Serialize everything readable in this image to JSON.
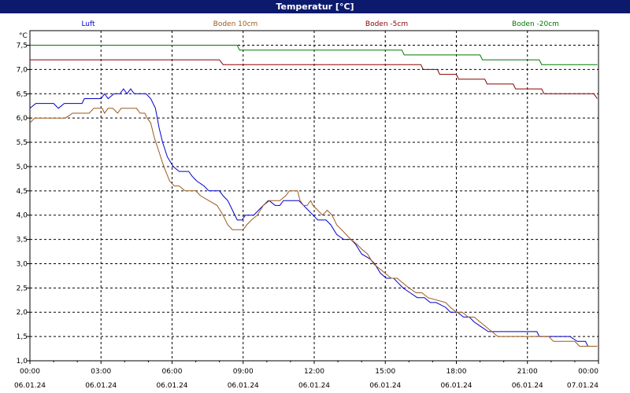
{
  "window": {
    "title": "Temperatur [°C]"
  },
  "chart_data": {
    "type": "line",
    "title": "Temperatur [°C]",
    "ylabel": "°C",
    "xlabel": "",
    "ylim": [
      1.0,
      7.8
    ],
    "xlim": [
      0,
      24
    ],
    "grid": true,
    "legend_position": "top",
    "y_ticks": [
      "7,5",
      "7,0",
      "6,5",
      "6,0",
      "5,5",
      "5,0",
      "4,5",
      "4,0",
      "3,5",
      "3,0",
      "2,5",
      "2,0",
      "1,5",
      "1,0"
    ],
    "x_ticks": [
      {
        "time": "00:00",
        "date": "06.01.24"
      },
      {
        "time": "03:00",
        "date": "06.01.24"
      },
      {
        "time": "06:00",
        "date": "06.01.24"
      },
      {
        "time": "09:00",
        "date": "06.01.24"
      },
      {
        "time": "12:00",
        "date": "06.01.24"
      },
      {
        "time": "15:00",
        "date": "06.01.24"
      },
      {
        "time": "18:00",
        "date": "06.01.24"
      },
      {
        "time": "21:00",
        "date": "06.01.24"
      },
      {
        "time": "00:00",
        "date": "07.01.24"
      }
    ],
    "series": [
      {
        "name": "Luft",
        "color": "#0000c8",
        "points": [
          [
            0,
            6.2
          ],
          [
            0.25,
            6.3
          ],
          [
            1.0,
            6.3
          ],
          [
            1.2,
            6.2
          ],
          [
            1.45,
            6.3
          ],
          [
            2.2,
            6.3
          ],
          [
            2.3,
            6.4
          ],
          [
            3.0,
            6.4
          ],
          [
            3.15,
            6.5
          ],
          [
            3.3,
            6.4
          ],
          [
            3.55,
            6.5
          ],
          [
            3.8,
            6.5
          ],
          [
            3.95,
            6.6
          ],
          [
            4.1,
            6.5
          ],
          [
            4.25,
            6.6
          ],
          [
            4.4,
            6.5
          ],
          [
            4.9,
            6.5
          ],
          [
            5.1,
            6.4
          ],
          [
            5.3,
            6.2
          ],
          [
            5.45,
            5.8
          ],
          [
            5.6,
            5.5
          ],
          [
            5.8,
            5.2
          ],
          [
            6.05,
            5.0
          ],
          [
            6.3,
            4.9
          ],
          [
            6.7,
            4.9
          ],
          [
            6.85,
            4.8
          ],
          [
            7.05,
            4.7
          ],
          [
            7.35,
            4.6
          ],
          [
            7.55,
            4.5
          ],
          [
            8.0,
            4.5
          ],
          [
            8.15,
            4.4
          ],
          [
            8.35,
            4.3
          ],
          [
            8.55,
            4.1
          ],
          [
            8.75,
            3.9
          ],
          [
            8.95,
            3.9
          ],
          [
            9.1,
            4.0
          ],
          [
            9.45,
            4.0
          ],
          [
            9.65,
            4.1
          ],
          [
            9.85,
            4.2
          ],
          [
            10.1,
            4.3
          ],
          [
            10.35,
            4.2
          ],
          [
            10.55,
            4.2
          ],
          [
            10.7,
            4.3
          ],
          [
            11.05,
            4.3
          ],
          [
            11.35,
            4.3
          ],
          [
            11.55,
            4.2
          ],
          [
            11.75,
            4.1
          ],
          [
            11.95,
            4.0
          ],
          [
            12.15,
            3.9
          ],
          [
            12.5,
            3.9
          ],
          [
            12.7,
            3.8
          ],
          [
            12.95,
            3.6
          ],
          [
            13.25,
            3.5
          ],
          [
            13.55,
            3.5
          ],
          [
            13.75,
            3.4
          ],
          [
            14.0,
            3.2
          ],
          [
            14.35,
            3.1
          ],
          [
            14.55,
            3.0
          ],
          [
            14.8,
            2.8
          ],
          [
            15.05,
            2.7
          ],
          [
            15.35,
            2.7
          ],
          [
            15.55,
            2.6
          ],
          [
            15.75,
            2.5
          ],
          [
            16.05,
            2.4
          ],
          [
            16.35,
            2.3
          ],
          [
            16.65,
            2.3
          ],
          [
            16.9,
            2.2
          ],
          [
            17.15,
            2.2
          ],
          [
            17.55,
            2.1
          ],
          [
            17.75,
            2.0
          ],
          [
            18.05,
            2.0
          ],
          [
            18.3,
            1.9
          ],
          [
            18.55,
            1.9
          ],
          [
            18.75,
            1.8
          ],
          [
            19.05,
            1.7
          ],
          [
            19.35,
            1.6
          ],
          [
            19.65,
            1.6
          ],
          [
            21.0,
            1.6
          ],
          [
            21.4,
            1.6
          ],
          [
            21.5,
            1.5
          ],
          [
            22.8,
            1.5
          ],
          [
            23.1,
            1.4
          ],
          [
            23.45,
            1.4
          ],
          [
            23.55,
            1.3
          ],
          [
            23.95,
            1.3
          ]
        ]
      },
      {
        "name": "Boden 10cm",
        "color": "#9b5a1e",
        "points": [
          [
            0,
            5.9
          ],
          [
            0.2,
            6.0
          ],
          [
            1.5,
            6.0
          ],
          [
            1.8,
            6.1
          ],
          [
            2.5,
            6.1
          ],
          [
            2.7,
            6.2
          ],
          [
            3.05,
            6.2
          ],
          [
            3.15,
            6.1
          ],
          [
            3.3,
            6.2
          ],
          [
            3.5,
            6.2
          ],
          [
            3.7,
            6.1
          ],
          [
            3.85,
            6.2
          ],
          [
            4.5,
            6.2
          ],
          [
            4.65,
            6.1
          ],
          [
            4.85,
            6.1
          ],
          [
            4.95,
            6.0
          ],
          [
            5.1,
            5.9
          ],
          [
            5.25,
            5.6
          ],
          [
            5.45,
            5.3
          ],
          [
            5.65,
            5.0
          ],
          [
            5.9,
            4.7
          ],
          [
            6.1,
            4.6
          ],
          [
            6.3,
            4.6
          ],
          [
            6.55,
            4.5
          ],
          [
            7.0,
            4.5
          ],
          [
            7.2,
            4.4
          ],
          [
            7.55,
            4.3
          ],
          [
            7.9,
            4.2
          ],
          [
            8.15,
            4.0
          ],
          [
            8.35,
            3.8
          ],
          [
            8.55,
            3.7
          ],
          [
            9.0,
            3.7
          ],
          [
            9.15,
            3.8
          ],
          [
            9.35,
            3.9
          ],
          [
            9.6,
            4.0
          ],
          [
            9.85,
            4.2
          ],
          [
            10.05,
            4.3
          ],
          [
            10.35,
            4.3
          ],
          [
            10.55,
            4.3
          ],
          [
            10.8,
            4.4
          ],
          [
            10.95,
            4.5
          ],
          [
            11.3,
            4.5
          ],
          [
            11.4,
            4.3
          ],
          [
            11.55,
            4.2
          ],
          [
            11.7,
            4.2
          ],
          [
            11.85,
            4.3
          ],
          [
            11.95,
            4.2
          ],
          [
            12.15,
            4.1
          ],
          [
            12.35,
            4.0
          ],
          [
            12.55,
            4.1
          ],
          [
            12.75,
            4.0
          ],
          [
            12.95,
            3.8
          ],
          [
            13.15,
            3.7
          ],
          [
            13.35,
            3.6
          ],
          [
            13.55,
            3.5
          ],
          [
            13.8,
            3.4
          ],
          [
            14.0,
            3.3
          ],
          [
            14.25,
            3.2
          ],
          [
            14.5,
            3.0
          ],
          [
            14.75,
            2.9
          ],
          [
            15.0,
            2.8
          ],
          [
            15.25,
            2.7
          ],
          [
            15.5,
            2.7
          ],
          [
            15.75,
            2.6
          ],
          [
            16.0,
            2.5
          ],
          [
            16.3,
            2.4
          ],
          [
            16.55,
            2.4
          ],
          [
            16.8,
            2.3
          ],
          [
            17.55,
            2.2
          ],
          [
            17.75,
            2.1
          ],
          [
            18.0,
            2.0
          ],
          [
            18.25,
            2.0
          ],
          [
            18.5,
            1.9
          ],
          [
            18.75,
            1.9
          ],
          [
            19.0,
            1.8
          ],
          [
            19.25,
            1.7
          ],
          [
            19.5,
            1.6
          ],
          [
            19.75,
            1.5
          ],
          [
            21.9,
            1.5
          ],
          [
            22.1,
            1.4
          ],
          [
            23.0,
            1.4
          ],
          [
            23.2,
            1.3
          ],
          [
            23.95,
            1.3
          ]
        ]
      },
      {
        "name": "Boden -5cm",
        "color": "#8b0000",
        "points": [
          [
            0,
            7.2
          ],
          [
            8.0,
            7.2
          ],
          [
            8.15,
            7.1
          ],
          [
            15.6,
            7.1
          ],
          [
            16.5,
            7.1
          ],
          [
            16.6,
            7.0
          ],
          [
            17.2,
            7.0
          ],
          [
            17.3,
            6.9
          ],
          [
            18.0,
            6.9
          ],
          [
            18.1,
            6.8
          ],
          [
            19.2,
            6.8
          ],
          [
            19.3,
            6.7
          ],
          [
            20.4,
            6.7
          ],
          [
            20.5,
            6.6
          ],
          [
            21.6,
            6.6
          ],
          [
            21.7,
            6.5
          ],
          [
            23.8,
            6.5
          ],
          [
            23.95,
            6.4
          ]
        ]
      },
      {
        "name": "Boden -20cm",
        "color": "#007800",
        "points": [
          [
            0,
            7.5
          ],
          [
            8.75,
            7.5
          ],
          [
            8.85,
            7.4
          ],
          [
            15.7,
            7.4
          ],
          [
            15.8,
            7.3
          ],
          [
            19.0,
            7.3
          ],
          [
            19.1,
            7.2
          ],
          [
            21.5,
            7.2
          ],
          [
            21.6,
            7.1
          ],
          [
            23.95,
            7.1
          ]
        ]
      }
    ]
  }
}
